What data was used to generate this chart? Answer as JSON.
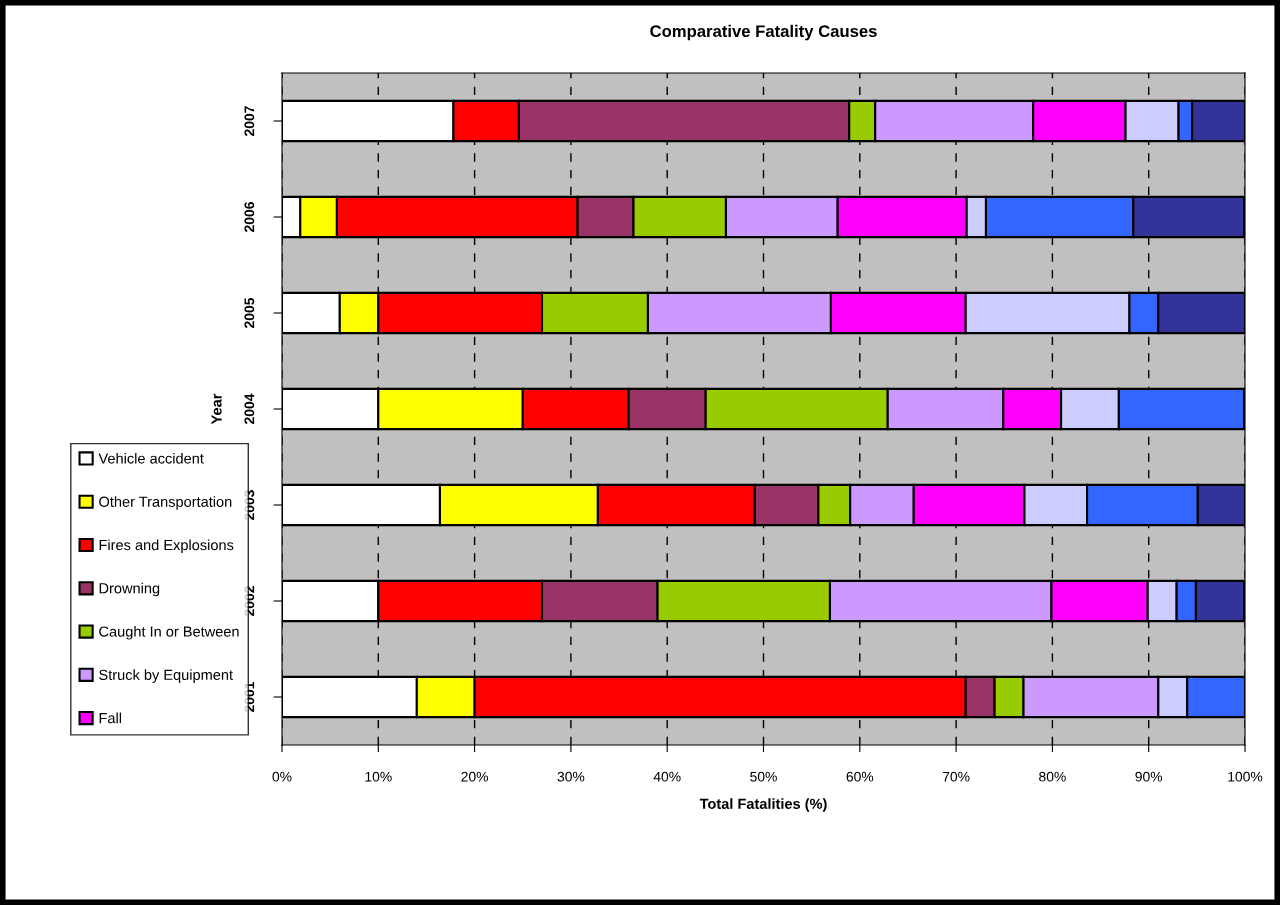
{
  "chart_data": {
    "type": "bar",
    "orientation": "horizontal",
    "stacked": true,
    "title": "Comparative Fatality Causes",
    "xlabel": "Total Fatalities (%)",
    "ylabel": "Year",
    "categories": [
      "2007",
      "2006",
      "2005",
      "2004",
      "2003",
      "2002",
      "2001"
    ],
    "series": [
      {
        "name": "Vehicle accident",
        "color": "#ffffff",
        "values": [
          17.8,
          1.9,
          6.0,
          10.0,
          16.4,
          10.0,
          14.0
        ]
      },
      {
        "name": "Other Transportation",
        "color": "#ffff00",
        "values": [
          null,
          3.8,
          4.0,
          15.0,
          16.4,
          null,
          6.0
        ]
      },
      {
        "name": "Fires and Explosions",
        "color": "#ff0000",
        "values": [
          6.8,
          25.0,
          17.0,
          11.0,
          16.3,
          17.0,
          51.0
        ]
      },
      {
        "name": "Drowning",
        "color": "#993366",
        "values": [
          34.3,
          5.8,
          null,
          8.0,
          6.6,
          12.0,
          3.0
        ]
      },
      {
        "name": "Caught In or Between",
        "color": "#99cc00",
        "values": [
          2.7,
          9.6,
          11.0,
          18.9,
          3.3,
          17.9,
          3.0
        ]
      },
      {
        "name": "Struck by Equipment",
        "color": "#cc99ff",
        "values": [
          16.4,
          11.6,
          19.0,
          12.0,
          6.6,
          23.0,
          14.0
        ]
      },
      {
        "name": "Fall",
        "color": "#ff00ff",
        "values": [
          9.6,
          13.4,
          14.0,
          6.0,
          11.5,
          10.0,
          null
        ]
      },
      {
        "color": "#ccccff",
        "values": [
          5.5,
          2.0,
          17.0,
          6.0,
          6.5,
          3.0,
          3.0
        ]
      },
      {
        "color": "#3366ff",
        "values": [
          1.4,
          15.3,
          3.0,
          13.0,
          11.5,
          2.0,
          6.0
        ]
      },
      {
        "color": "#333399",
        "values": [
          5.5,
          11.5,
          9.0,
          null,
          4.9,
          5.0,
          null
        ]
      }
    ],
    "xlim": [
      0,
      100
    ],
    "xticks": [
      {
        "value": 0,
        "label": "0%"
      },
      {
        "value": 10,
        "label": "10%"
      },
      {
        "value": 20,
        "label": "20%"
      },
      {
        "value": 30,
        "label": "30%"
      },
      {
        "value": 40,
        "label": "40%"
      },
      {
        "value": 50,
        "label": "50%"
      },
      {
        "value": 60,
        "label": "60%"
      },
      {
        "value": 70,
        "label": "70%"
      },
      {
        "value": 80,
        "label": "80%"
      },
      {
        "value": 90,
        "label": "90%"
      },
      {
        "value": 100,
        "label": "100%"
      }
    ],
    "grid": "x",
    "legend": "left"
  }
}
